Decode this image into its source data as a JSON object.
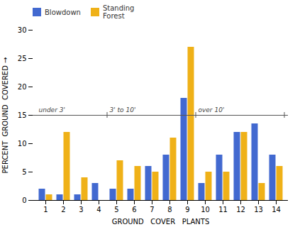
{
  "chart_data": {
    "type": "bar",
    "categories": [
      1,
      2,
      3,
      4,
      5,
      6,
      7,
      8,
      9,
      10,
      11,
      12,
      13,
      14
    ],
    "series": [
      {
        "name": "Blowdown",
        "values": [
          2.0,
          1.0,
          1.0,
          3.0,
          2.0,
          2.0,
          6.0,
          8.0,
          18.0,
          3.0,
          8.0,
          12.0,
          13.5,
          8.0
        ]
      },
      {
        "name": "Standing\nForest",
        "values": [
          1.0,
          12.0,
          4.0,
          0.0,
          7.0,
          6.0,
          5.0,
          11.0,
          27.0,
          5.0,
          5.0,
          12.0,
          3.0,
          6.0
        ]
      }
    ],
    "xlabel": "GROUND   COVER   PLANTS",
    "ylabel": "PERCENT  GROUND  COVERED",
    "ylim": [
      0,
      30
    ],
    "yticks": [
      0,
      5,
      10,
      15,
      20,
      25,
      30
    ],
    "legend": "upper left",
    "annotations": [
      {
        "type": "hline",
        "y": 15,
        "regions": [
          {
            "text": "under 3'",
            "first": 1,
            "last": 4
          },
          {
            "text": "3' to 10'",
            "first": 5,
            "last": 9
          },
          {
            "text": "over 10'",
            "first": 10,
            "last": 14
          }
        ]
      }
    ]
  }
}
